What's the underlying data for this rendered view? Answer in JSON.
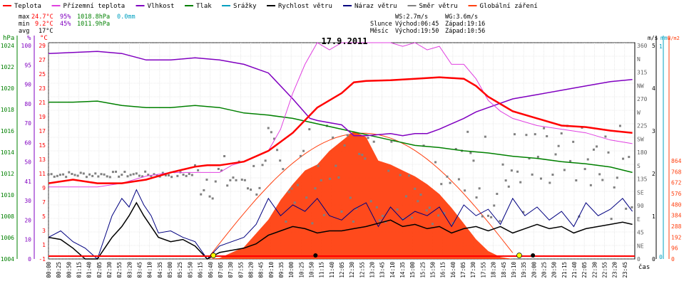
{
  "chart_data": {
    "type": "line",
    "title": "17.9.2011",
    "xlabel": "čas",
    "legend": [
      {
        "name": "Teplota",
        "color": "#ff0000"
      },
      {
        "name": "Přízemní teplota",
        "color": "#e040e0"
      },
      {
        "name": "Vlhkost",
        "color": "#8000c0"
      },
      {
        "name": "Tlak",
        "color": "#008000"
      },
      {
        "name": "Srážky",
        "color": "#00a0c0"
      },
      {
        "name": "Rychlost větru",
        "color": "#000000"
      },
      {
        "name": "Náraz větru",
        "color": "#000080"
      },
      {
        "name": "Směr větru",
        "color": "#808080"
      },
      {
        "name": "Globální záření",
        "color": "#ff4010"
      }
    ],
    "stats": {
      "max": {
        "label": "max",
        "temp": "24.7°C",
        "hum": "95%",
        "press": "1018.8hPa",
        "rain": "0.0mm"
      },
      "min": {
        "label": "min",
        "temp": "9.2°C",
        "hum": "45%",
        "press": "1011.9hPa"
      },
      "avg": {
        "label": "avg",
        "temp": "17°C"
      }
    },
    "wind_info": {
      "ws": "WS:2.7m/s",
      "wg": "WG:3.6m/s"
    },
    "sun_info": {
      "label": "Slunce",
      "rise": "Východ:06:45",
      "set": "Západ:19:16"
    },
    "moon_info": {
      "label": "Měsíc",
      "rise": "Východ:19:50",
      "set": "Západ:10:56"
    },
    "axes": {
      "hpa": {
        "label": "hPa",
        "ticks": [
          "1024",
          "1022",
          "1020",
          "1018",
          "1016",
          "1014",
          "1012",
          "1010",
          "1008",
          "1006",
          "1004"
        ]
      },
      "percent": {
        "label": "%",
        "ticks": [
          "100",
          "95",
          "90",
          "80",
          "70",
          "60",
          "50",
          "41",
          "30",
          "20",
          "10",
          "0"
        ]
      },
      "celsius": {
        "label": "°C",
        "ticks": [
          "29",
          "27",
          "25",
          "23",
          "21",
          "19",
          "17",
          "15",
          "13",
          "11",
          "9",
          "7",
          "5",
          "3",
          "1",
          "-1"
        ]
      },
      "direction": {
        "ticks": [
          "360",
          "N",
          "315",
          "NW",
          "270",
          "W",
          "225",
          "SW",
          "180",
          "S",
          "135",
          "SE",
          "90",
          "E",
          "45",
          "NE",
          "0"
        ]
      },
      "ms": {
        "label": "m/s",
        "ticks": [
          "5",
          "4",
          "3",
          "2",
          "1",
          "0"
        ]
      },
      "mm": {
        "label": "mm",
        "ticks": [
          "1",
          "0"
        ]
      },
      "wm2": {
        "label": "W/m2",
        "ticks": [
          "864",
          "768",
          "672",
          "576",
          "480",
          "384",
          "288",
          "192",
          "96",
          "0"
        ]
      }
    },
    "x_ticks": [
      "00:00",
      "00:25",
      "00:50",
      "01:15",
      "01:40",
      "02:05",
      "02:30",
      "02:55",
      "03:20",
      "03:45",
      "04:10",
      "04:35",
      "05:00",
      "05:25",
      "05:50",
      "06:15",
      "06:40",
      "07:05",
      "07:30",
      "07:55",
      "08:20",
      "08:45",
      "09:10",
      "09:35",
      "10:00",
      "10:25",
      "10:50",
      "11:15",
      "11:40",
      "12:05",
      "12:30",
      "12:55",
      "13:20",
      "13:45",
      "14:10",
      "14:35",
      "15:00",
      "15:25",
      "15:50",
      "16:15",
      "16:40",
      "17:05",
      "17:30",
      "17:55",
      "18:20",
      "18:45",
      "19:10",
      "19:35",
      "20:00",
      "20:25",
      "20:50",
      "21:15",
      "21:40",
      "22:05",
      "22:30",
      "22:55",
      "23:20",
      "23:45"
    ],
    "series": [
      {
        "name": "Teplota",
        "unit": "°C",
        "color": "#ff0000",
        "points": [
          [
            0,
            9.5
          ],
          [
            1,
            10
          ],
          [
            2,
            9.5
          ],
          [
            3,
            9.5
          ],
          [
            4,
            10
          ],
          [
            5,
            11
          ],
          [
            6,
            11.8
          ],
          [
            6.5,
            12
          ],
          [
            7,
            12
          ],
          [
            8,
            12.5
          ],
          [
            9,
            14
          ],
          [
            10,
            16.5
          ],
          [
            11,
            20
          ],
          [
            12,
            22
          ],
          [
            12.5,
            23.5
          ],
          [
            13,
            23.7
          ],
          [
            14,
            23.8
          ],
          [
            15,
            24
          ],
          [
            16,
            24.2
          ],
          [
            17,
            24
          ],
          [
            17.5,
            23
          ],
          [
            18,
            21.5
          ],
          [
            19,
            19.5
          ],
          [
            20,
            18.5
          ],
          [
            21,
            17.5
          ],
          [
            22,
            17.3
          ],
          [
            23,
            16.8
          ],
          [
            23.9,
            16.5
          ]
        ]
      },
      {
        "name": "Přízemní teplota",
        "unit": "°C",
        "color": "#e040e0",
        "points": [
          [
            0,
            9
          ],
          [
            1,
            9
          ],
          [
            2,
            9
          ],
          [
            3,
            9.5
          ],
          [
            4,
            10.5
          ],
          [
            5,
            11
          ],
          [
            6,
            11
          ],
          [
            6.5,
            11
          ],
          [
            7,
            11
          ],
          [
            7.5,
            12
          ],
          [
            8,
            12.5
          ],
          [
            9,
            14
          ],
          [
            9.5,
            17
          ],
          [
            10,
            22
          ],
          [
            10.5,
            26
          ],
          [
            11,
            29
          ],
          [
            11.5,
            28
          ],
          [
            12,
            29
          ],
          [
            12.5,
            29
          ],
          [
            13,
            29
          ],
          [
            14,
            29
          ],
          [
            14.5,
            28.5
          ],
          [
            15,
            29
          ],
          [
            15.5,
            28
          ],
          [
            16,
            28.5
          ],
          [
            16.5,
            26
          ],
          [
            17,
            26
          ],
          [
            17.5,
            24
          ],
          [
            18,
            21
          ],
          [
            18.5,
            19.5
          ],
          [
            19,
            18.5
          ],
          [
            20,
            17.5
          ],
          [
            21,
            17
          ],
          [
            22,
            16.5
          ],
          [
            23,
            15.5
          ],
          [
            23.9,
            15
          ]
        ]
      },
      {
        "name": "Vlhkost",
        "unit": "%",
        "color": "#8000c0",
        "points": [
          [
            0,
            95
          ],
          [
            2,
            96
          ],
          [
            3,
            95
          ],
          [
            4,
            92
          ],
          [
            5,
            92
          ],
          [
            6,
            93
          ],
          [
            7,
            92
          ],
          [
            8,
            90
          ],
          [
            9,
            86
          ],
          [
            10,
            74
          ],
          [
            10.7,
            65
          ],
          [
            11,
            64
          ],
          [
            12,
            62
          ],
          [
            12.5,
            57
          ],
          [
            13,
            57
          ],
          [
            14,
            58
          ],
          [
            14.5,
            57
          ],
          [
            15,
            58
          ],
          [
            15.5,
            58
          ],
          [
            16,
            60
          ],
          [
            17,
            65
          ],
          [
            17.5,
            68
          ],
          [
            18,
            70
          ],
          [
            19,
            74
          ],
          [
            20,
            76
          ],
          [
            21,
            78
          ],
          [
            22,
            80
          ],
          [
            23,
            82
          ],
          [
            23.9,
            83
          ]
        ]
      },
      {
        "name": "Tlak",
        "unit": "hPa",
        "color": "#008000",
        "points": [
          [
            0,
            1018.5
          ],
          [
            1,
            1018.5
          ],
          [
            2,
            1018.6
          ],
          [
            3,
            1018.2
          ],
          [
            4,
            1018
          ],
          [
            5,
            1018
          ],
          [
            6,
            1018.2
          ],
          [
            7,
            1018
          ],
          [
            8,
            1017.5
          ],
          [
            9,
            1017.3
          ],
          [
            10,
            1017
          ],
          [
            11,
            1016.5
          ],
          [
            12,
            1016
          ],
          [
            13,
            1015.5
          ],
          [
            14,
            1015
          ],
          [
            15,
            1014.5
          ],
          [
            16,
            1014.3
          ],
          [
            17,
            1014
          ],
          [
            18,
            1013.8
          ],
          [
            19,
            1013.5
          ],
          [
            20,
            1013.3
          ],
          [
            21,
            1013
          ],
          [
            22,
            1012.8
          ],
          [
            23,
            1012.5
          ],
          [
            23.9,
            1012
          ]
        ]
      },
      {
        "name": "Globální záření",
        "unit": "W/m2",
        "color": "#ff4010",
        "points": [
          [
            6.5,
            0
          ],
          [
            7,
            5
          ],
          [
            8,
            60
          ],
          [
            9,
            200
          ],
          [
            9.5,
            300
          ],
          [
            10,
            380
          ],
          [
            10.5,
            450
          ],
          [
            11,
            480
          ],
          [
            11.5,
            550
          ],
          [
            12,
            600
          ],
          [
            12.5,
            650
          ],
          [
            13,
            620
          ],
          [
            13.5,
            500
          ],
          [
            14,
            480
          ],
          [
            14.5,
            450
          ],
          [
            15,
            420
          ],
          [
            15.5,
            380
          ],
          [
            16,
            330
          ],
          [
            16.5,
            260
          ],
          [
            17,
            180
          ],
          [
            17.5,
            100
          ],
          [
            18,
            40
          ],
          [
            18.5,
            10
          ],
          [
            19,
            0
          ]
        ]
      },
      {
        "name": "Rychlost větru",
        "unit": "m/s",
        "color": "#000000",
        "points": [
          [
            0,
            1
          ],
          [
            0.5,
            0.9
          ],
          [
            1,
            0.5
          ],
          [
            1.5,
            0
          ],
          [
            2,
            0
          ],
          [
            2.3,
            0.5
          ],
          [
            2.6,
            1
          ],
          [
            3,
            1.5
          ],
          [
            3.3,
            2
          ],
          [
            3.6,
            2.6
          ],
          [
            3.9,
            2
          ],
          [
            4.2,
            1.5
          ],
          [
            4.5,
            1
          ],
          [
            5,
            0.8
          ],
          [
            5.5,
            0.9
          ],
          [
            6,
            0.6
          ],
          [
            6.5,
            0
          ],
          [
            7,
            0.3
          ],
          [
            8,
            0.5
          ],
          [
            8.5,
            0.7
          ],
          [
            9,
            1.1
          ],
          [
            9.5,
            1.3
          ],
          [
            10,
            1.5
          ],
          [
            10.5,
            1.4
          ],
          [
            11,
            1.2
          ],
          [
            11.5,
            1.3
          ],
          [
            12,
            1.3
          ],
          [
            12.5,
            1.4
          ],
          [
            13,
            1.5
          ],
          [
            14,
            1.8
          ],
          [
            14.5,
            1.5
          ],
          [
            15,
            1.6
          ],
          [
            15.5,
            1.4
          ],
          [
            16,
            1.5
          ],
          [
            16.5,
            1.2
          ],
          [
            17,
            1.4
          ],
          [
            17.5,
            1.5
          ],
          [
            18,
            1.3
          ],
          [
            18.5,
            1.5
          ],
          [
            19,
            1.2
          ],
          [
            19.5,
            1.4
          ],
          [
            20,
            1.6
          ],
          [
            20.5,
            1.4
          ],
          [
            21,
            1.5
          ],
          [
            21.5,
            1.2
          ],
          [
            22,
            1.4
          ],
          [
            22.5,
            1.5
          ],
          [
            23,
            1.6
          ],
          [
            23.5,
            1.7
          ],
          [
            23.9,
            1.6
          ]
        ]
      },
      {
        "name": "Náraz větru",
        "unit": "m/s",
        "color": "#000080",
        "points": [
          [
            0,
            1
          ],
          [
            0.5,
            1.3
          ],
          [
            1,
            0.8
          ],
          [
            1.5,
            0.5
          ],
          [
            2,
            0
          ],
          [
            2.3,
            1
          ],
          [
            2.6,
            2
          ],
          [
            3,
            2.8
          ],
          [
            3.3,
            2.4
          ],
          [
            3.6,
            3.2
          ],
          [
            3.9,
            2.5
          ],
          [
            4.2,
            2
          ],
          [
            4.5,
            1.2
          ],
          [
            5,
            1.3
          ],
          [
            5.5,
            1
          ],
          [
            6,
            0.8
          ],
          [
            6.5,
            0
          ],
          [
            7,
            0.6
          ],
          [
            8,
            1
          ],
          [
            8.5,
            1.6
          ],
          [
            9,
            2.8
          ],
          [
            9.5,
            2
          ],
          [
            10,
            2.5
          ],
          [
            10.5,
            2.2
          ],
          [
            11,
            2.8
          ],
          [
            11.5,
            2
          ],
          [
            12,
            1.8
          ],
          [
            12.5,
            2.3
          ],
          [
            13,
            2.6
          ],
          [
            13.5,
            1.5
          ],
          [
            14,
            2.4
          ],
          [
            14.5,
            1.8
          ],
          [
            15,
            2.2
          ],
          [
            15.5,
            2
          ],
          [
            16,
            2.4
          ],
          [
            16.5,
            1.5
          ],
          [
            17,
            2.5
          ],
          [
            17.5,
            2
          ],
          [
            18,
            2.3
          ],
          [
            18.5,
            1.6
          ],
          [
            19,
            2.8
          ],
          [
            19.5,
            2
          ],
          [
            20,
            2.4
          ],
          [
            20.5,
            1.8
          ],
          [
            21,
            2.2
          ],
          [
            21.5,
            1.5
          ],
          [
            22,
            2.6
          ],
          [
            22.5,
            2
          ],
          [
            23,
            2.3
          ],
          [
            23.5,
            2.8
          ],
          [
            23.9,
            2.2
          ]
        ]
      }
    ]
  }
}
